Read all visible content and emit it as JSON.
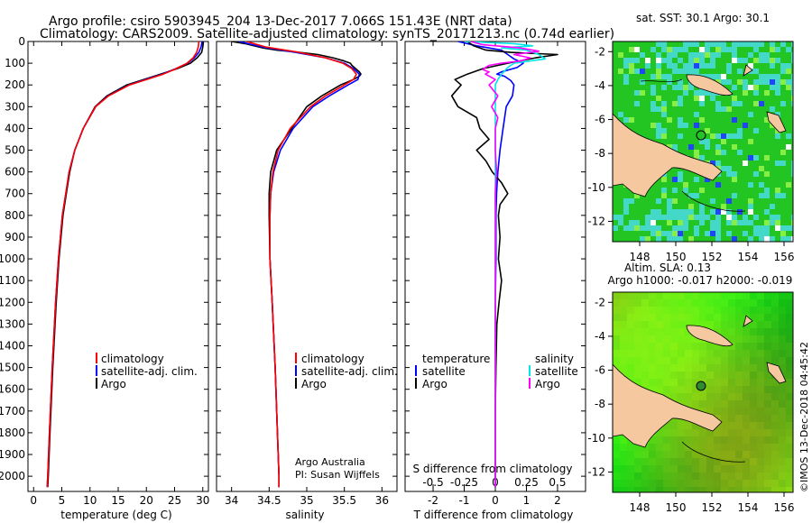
{
  "header": {
    "line1": "Argo profile: csiro 5903945_204 13-Dec-2017 7.066S 151.43E (NRT data)",
    "line2": "Climatology: CARS2009. Satellite-adjusted climatology: synTS_20171213.nc (0.74d earlier)"
  },
  "colors": {
    "climatology": "#ff0000",
    "satellite": "#0000ff",
    "argo": "#000000",
    "sat_salinity": "#00e5e5",
    "argo_salinity": "#ff00ff",
    "land": "#f5c8a0",
    "sst_green": "#22c522",
    "sla_green": "#66dd22"
  },
  "legend": {
    "climatology": "climatology",
    "satellite": "satellite-adj. clim.",
    "argo": "Argo",
    "diff_temperature": "temperature",
    "diff_salinity": "salinity",
    "diff_satellite": "satellite",
    "diff_argo": "Argo"
  },
  "credit": {
    "line1": "Argo Australia",
    "line2": "PI: Susan Wijffels"
  },
  "stamp": "©IMOS 13-Dec-2018 04:45:42",
  "maps": {
    "sst_title": "sat. SST: 30.1 Argo: 30.1",
    "sla_title1": "Altim. SLA: 0.13",
    "sla_title2": "Argo h1000: -0.017 h2000: -0.019"
  },
  "chart_data": [
    {
      "type": "line",
      "name": "temperature-profile",
      "xlabel": "temperature (deg C)",
      "ylabel": "",
      "xlim": [
        -1,
        31
      ],
      "ylim": [
        2070,
        0
      ],
      "xticks": [
        "0",
        "5",
        "10",
        "15",
        "20",
        "25",
        "30"
      ],
      "yticks": [
        "0",
        "100",
        "200",
        "300",
        "400",
        "500",
        "600",
        "700",
        "800",
        "900",
        "1000",
        "1100",
        "1200",
        "1300",
        "1400",
        "1500",
        "1600",
        "1700",
        "1800",
        "1900",
        "2000"
      ],
      "series": [
        {
          "name": "Argo",
          "depth": [
            0,
            25,
            50,
            75,
            100,
            125,
            150,
            175,
            200,
            250,
            300,
            400,
            500,
            600,
            700,
            800,
            1000,
            1200,
            1500,
            1800,
            2000,
            2050
          ],
          "values": [
            30.1,
            30.0,
            29.8,
            29.0,
            27.8,
            25.5,
            22.5,
            19.5,
            16.5,
            13.0,
            10.9,
            8.8,
            7.3,
            6.4,
            5.8,
            5.2,
            4.5,
            4.0,
            3.4,
            2.9,
            2.6,
            2.5
          ]
        },
        {
          "name": "satellite-adj. clim.",
          "depth": [
            0,
            25,
            50,
            75,
            100,
            125,
            150,
            175,
            200,
            250,
            300,
            400,
            500,
            600,
            700,
            800,
            1000,
            1200,
            1500,
            1800,
            2000,
            2050
          ],
          "values": [
            29.9,
            29.7,
            29.3,
            28.5,
            27.3,
            25.2,
            22.8,
            19.8,
            16.9,
            13.2,
            11.0,
            8.8,
            7.3,
            6.3,
            5.7,
            5.1,
            4.4,
            3.9,
            3.3,
            2.8,
            2.5,
            2.4
          ]
        },
        {
          "name": "climatology",
          "depth": [
            0,
            25,
            50,
            75,
            100,
            125,
            150,
            175,
            200,
            250,
            300,
            400,
            500,
            600,
            700,
            800,
            1000,
            1200,
            1500,
            1800,
            2000,
            2050
          ],
          "values": [
            29.3,
            29.2,
            28.9,
            28.3,
            27.2,
            25.3,
            23.0,
            20.0,
            17.0,
            13.3,
            11.0,
            8.8,
            7.3,
            6.3,
            5.7,
            5.1,
            4.4,
            3.9,
            3.3,
            2.8,
            2.5,
            2.4
          ]
        }
      ]
    },
    {
      "type": "line",
      "name": "salinity-profile",
      "xlabel": "salinity",
      "xlim": [
        33.8,
        36.2
      ],
      "ylim": [
        2070,
        0
      ],
      "xticks": [
        "34",
        "34.5",
        "35",
        "35.5",
        "36"
      ],
      "series": [
        {
          "name": "Argo",
          "depth": [
            0,
            10,
            20,
            30,
            40,
            50,
            60,
            75,
            90,
            100,
            110,
            125,
            140,
            150,
            160,
            175,
            200,
            250,
            300,
            400,
            500,
            600,
            700,
            800,
            1000,
            1200,
            1500,
            1800,
            2000,
            2050
          ],
          "values": [
            34.0,
            34.18,
            34.3,
            34.42,
            34.6,
            34.9,
            35.15,
            35.35,
            35.5,
            35.58,
            35.6,
            35.65,
            35.7,
            35.72,
            35.7,
            35.62,
            35.45,
            35.2,
            35.0,
            34.8,
            34.6,
            34.52,
            34.5,
            34.5,
            34.51,
            34.54,
            34.58,
            34.61,
            34.63,
            34.63
          ]
        },
        {
          "name": "satellite-adj. clim.",
          "depth": [
            0,
            25,
            50,
            75,
            100,
            125,
            150,
            175,
            200,
            250,
            300,
            400,
            500,
            600,
            700,
            800,
            1000,
            1200,
            1500,
            1800,
            2000,
            2050
          ],
          "values": [
            34.1,
            34.4,
            34.85,
            35.25,
            35.5,
            35.62,
            35.7,
            35.68,
            35.55,
            35.3,
            35.08,
            34.82,
            34.65,
            34.56,
            34.52,
            34.51,
            34.51,
            34.54,
            34.58,
            34.61,
            34.63,
            34.63
          ]
        },
        {
          "name": "climatology",
          "depth": [
            0,
            25,
            50,
            75,
            100,
            125,
            150,
            175,
            200,
            250,
            300,
            400,
            500,
            600,
            700,
            800,
            1000,
            1200,
            1500,
            1800,
            2000,
            2050
          ],
          "values": [
            34.2,
            34.45,
            34.9,
            35.25,
            35.48,
            35.6,
            35.66,
            35.62,
            35.5,
            35.25,
            35.05,
            34.78,
            34.62,
            34.55,
            34.52,
            34.51,
            34.51,
            34.54,
            34.58,
            34.61,
            34.63,
            34.63
          ]
        }
      ]
    },
    {
      "type": "line",
      "name": "difference-profile",
      "xlabel": "T difference from climatology",
      "xlabel2": "S difference from climatology",
      "xlim": [
        -2.9,
        2.9
      ],
      "ylim": [
        2070,
        0
      ],
      "xticks": [
        "-2",
        "-1",
        "0",
        "1",
        "2"
      ],
      "xticks2": [
        "-0.5",
        "-0.25",
        "0",
        "0.25",
        "0.5"
      ],
      "series": [
        {
          "name": "T satellite",
          "depth": [
            0,
            20,
            40,
            60,
            80,
            100,
            120,
            140,
            150,
            160,
            180,
            200,
            250,
            300,
            400,
            500,
            600,
            700,
            800,
            1000,
            1200,
            1500,
            2000,
            2050
          ],
          "values": [
            -1.2,
            -0.6,
            0.2,
            0.4,
            0.6,
            0.9,
            0.7,
            0.2,
            0.05,
            0.3,
            0.5,
            0.6,
            0.55,
            0.35,
            0.25,
            0.15,
            0.08,
            0.04,
            0.02,
            0.02,
            0.0,
            0.0,
            0.0,
            0.0
          ]
        },
        {
          "name": "T Argo",
          "depth": [
            0,
            20,
            40,
            50,
            60,
            75,
            100,
            125,
            150,
            175,
            200,
            250,
            300,
            350,
            400,
            450,
            500,
            550,
            600,
            650,
            700,
            750,
            800,
            900,
            1000,
            1100,
            1200,
            1300,
            1500,
            1700,
            2000,
            2050
          ],
          "values": [
            -0.9,
            -0.7,
            -0.3,
            0.5,
            2.0,
            1.3,
            0.4,
            -0.4,
            -0.9,
            -1.3,
            -1.1,
            -1.4,
            -1.2,
            -0.6,
            -0.5,
            -0.2,
            -0.6,
            -0.3,
            -0.1,
            0.2,
            0.4,
            0.15,
            0.1,
            0.15,
            0.1,
            0.2,
            0.12,
            0.05,
            0.02,
            0.0,
            0.0,
            0.0
          ]
        },
        {
          "name": "S satellite",
          "depth": [
            0,
            10,
            20,
            30,
            40,
            60,
            80,
            100,
            120,
            150,
            175,
            200,
            300,
            400,
            500,
            700,
            1000,
            1500,
            2050
          ],
          "values": [
            -0.25,
            0.15,
            0.3,
            0.05,
            0.25,
            0.35,
            0.4,
            0.15,
            0.1,
            0.05,
            0.02,
            0.0,
            0.0,
            0.0,
            0.0,
            0.0,
            0.0,
            0.0,
            0.0
          ]
        },
        {
          "name": "S Argo",
          "depth": [
            0,
            15,
            30,
            45,
            60,
            75,
            90,
            100,
            110,
            120,
            130,
            140,
            150,
            175,
            200,
            250,
            300,
            350,
            400,
            500,
            600,
            700,
            800,
            1000,
            1500,
            2050
          ],
          "values": [
            -0.2,
            -0.1,
            0.2,
            0.35,
            0.15,
            0.28,
            0.2,
            0.05,
            -0.05,
            -0.08,
            -0.1,
            -0.05,
            -0.08,
            0.0,
            -0.05,
            0.02,
            -0.03,
            0.02,
            0.0,
            0.0,
            0.01,
            0.0,
            0.0,
            0.0,
            0.0,
            0.0
          ]
        }
      ]
    },
    {
      "type": "heatmap",
      "name": "sst-map",
      "title": "sat. SST: 30.1 Argo: 30.1",
      "xlim": [
        146.5,
        156.5
      ],
      "ylim": [
        -13.2,
        -1.4
      ],
      "xticks": [
        "148",
        "150",
        "152",
        "154",
        "156"
      ],
      "yticks": [
        "-2",
        "-4",
        "-6",
        "-8",
        "-10",
        "-12"
      ],
      "argo_position": {
        "lon": 151.43,
        "lat": -7.066
      }
    },
    {
      "type": "heatmap",
      "name": "sla-map",
      "title": "Altim. SLA: 0.13",
      "subtitle": "Argo h1000: -0.017 h2000: -0.019",
      "xlim": [
        146.5,
        156.5
      ],
      "ylim": [
        -13.2,
        -1.4
      ],
      "xticks": [
        "148",
        "150",
        "152",
        "154",
        "156"
      ],
      "yticks": [
        "-2",
        "-4",
        "-6",
        "-8",
        "-10",
        "-12"
      ],
      "argo_position": {
        "lon": 151.43,
        "lat": -7.066
      }
    }
  ]
}
